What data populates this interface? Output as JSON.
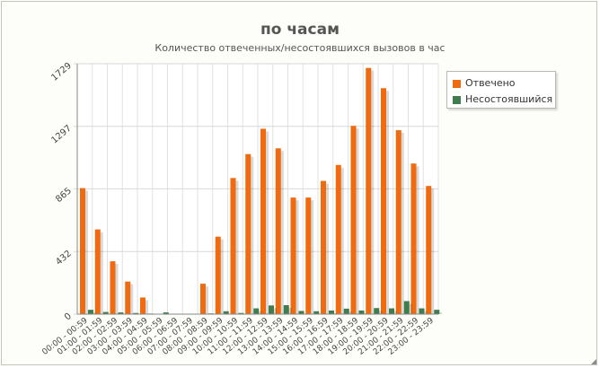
{
  "chart_data": {
    "type": "bar",
    "title": "по часам",
    "subtitle": "Количество отвеченных/несостоявшихся вызовов в час",
    "categories": [
      "00:00 - 00:59",
      "01:00 - 01:59",
      "02:00 - 02:59",
      "03:00 - 03:59",
      "04:00 - 04:59",
      "05:00 - 05:59",
      "06:00 - 06:59",
      "07:00 - 07:59",
      "08:00 - 08:59",
      "09:00 - 09:59",
      "10:00 - 10:59",
      "11:00 - 11:59",
      "12:00 - 12:59",
      "13:00 - 13:59",
      "14:00 - 14:59",
      "15:00 - 15:59",
      "16:00 - 16:59",
      "17:00 - 17:59",
      "18:00 - 18:59",
      "19:00 - 19:59",
      "20:00 - 20:59",
      "21:00 - 21:59",
      "22:00 - 22:59",
      "23:00 - 23:59"
    ],
    "series": [
      {
        "name": "Отвечено",
        "color": "#f06a0f",
        "values": [
          870,
          585,
          365,
          225,
          115,
          0,
          0,
          0,
          210,
          535,
          940,
          1105,
          1280,
          1145,
          805,
          805,
          920,
          1030,
          1300,
          1700,
          1560,
          1270,
          1040,
          885
        ]
      },
      {
        "name": "Несостоявшийся",
        "color": "#3f7d4f",
        "values": [
          30,
          15,
          12,
          8,
          4,
          12,
          3,
          2,
          5,
          20,
          8,
          40,
          60,
          62,
          22,
          20,
          25,
          38,
          25,
          42,
          40,
          90,
          40,
          30
        ]
      }
    ],
    "yticks": [
      "0",
      "432",
      "865",
      "1297",
      "1729"
    ],
    "ylim": [
      0,
      1729
    ],
    "grid": true,
    "legend_position": "right"
  }
}
